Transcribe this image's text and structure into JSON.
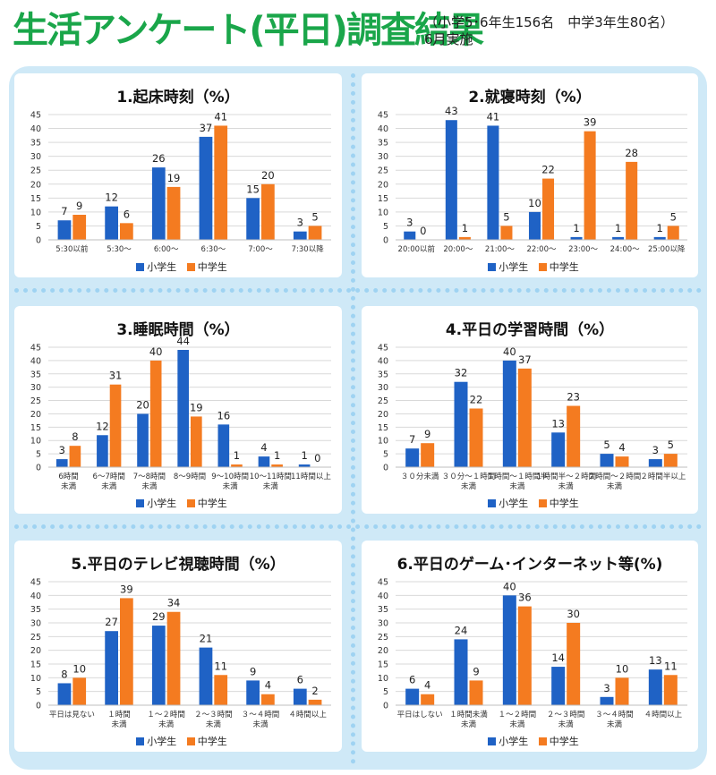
{
  "header": {
    "title": "生活アンケート(平日)調査結果",
    "subtitle_line1": "（小学5･6年生156名　中学3年生80名）",
    "subtitle_line2": "6月実施"
  },
  "legend": [
    "小学生",
    "中学生"
  ],
  "colors": {
    "elementary": "#1f62c5",
    "junior_high": "#f47b20",
    "grid": "#d9d9d9",
    "frame": "#cfe9f7",
    "title": "#1aa64a"
  },
  "chart_data": [
    {
      "type": "bar",
      "title": "1.起床時刻（%）",
      "categories": [
        [
          "5:30以前"
        ],
        [
          "5:30〜"
        ],
        [
          "6:00〜"
        ],
        [
          "6:30〜"
        ],
        [
          "7:00〜"
        ],
        [
          "7:30以降"
        ]
      ],
      "series": [
        {
          "name": "小学生",
          "values": [
            7,
            12,
            26,
            37,
            15,
            3
          ]
        },
        {
          "name": "中学生",
          "values": [
            9,
            6,
            19,
            41,
            20,
            5
          ]
        }
      ],
      "ylim": [
        0,
        45
      ],
      "ytick_step": 5,
      "grid": true,
      "legend": "bottom"
    },
    {
      "type": "bar",
      "title": "2.就寝時刻（%）",
      "categories": [
        [
          "20:00以前"
        ],
        [
          "20:00〜"
        ],
        [
          "21:00〜"
        ],
        [
          "22:00〜"
        ],
        [
          "23:00〜"
        ],
        [
          "24:00〜"
        ],
        [
          "25:00以降"
        ]
      ],
      "series": [
        {
          "name": "小学生",
          "values": [
            3,
            43,
            41,
            10,
            1,
            1,
            1
          ]
        },
        {
          "name": "中学生",
          "values": [
            0,
            1,
            5,
            22,
            39,
            28,
            5
          ]
        }
      ],
      "ylim": [
        0,
        45
      ],
      "ytick_step": 5,
      "grid": true,
      "legend": "bottom"
    },
    {
      "type": "bar",
      "title": "3.睡眠時間（%）",
      "categories": [
        [
          "6時間",
          "未満"
        ],
        [
          "6〜7時間",
          "未満"
        ],
        [
          "7〜8時間",
          "未満"
        ],
        [
          "8〜9時間"
        ],
        [
          "9〜10時間",
          "未満"
        ],
        [
          "10〜11時間",
          "未満"
        ],
        [
          "11時間以上"
        ]
      ],
      "series": [
        {
          "name": "小学生",
          "values": [
            3,
            12,
            20,
            44,
            16,
            4,
            1
          ]
        },
        {
          "name": "中学生",
          "values": [
            8,
            31,
            40,
            19,
            1,
            1,
            0
          ]
        }
      ],
      "ylim": [
        0,
        45
      ],
      "ytick_step": 5,
      "grid": true,
      "legend": "bottom"
    },
    {
      "type": "bar",
      "title": "4.平日の学習時間（%）",
      "categories": [
        [
          "３０分未満"
        ],
        [
          "３０分〜１時間",
          "未満"
        ],
        [
          "１時間〜１時間半",
          "未満"
        ],
        [
          "１時間半〜２時間",
          "未満"
        ],
        [
          "２時間〜２時間",
          "未満"
        ],
        [
          "２時間半以上"
        ]
      ],
      "series": [
        {
          "name": "小学生",
          "values": [
            7,
            32,
            40,
            13,
            5,
            3
          ]
        },
        {
          "name": "中学生",
          "values": [
            9,
            22,
            37,
            23,
            4,
            5
          ]
        }
      ],
      "ylim": [
        0,
        45
      ],
      "ytick_step": 5,
      "grid": true,
      "legend": "bottom"
    },
    {
      "type": "bar",
      "title": "5.平日のテレビ視聴時間（%）",
      "categories": [
        [
          "平日は見ない"
        ],
        [
          "１時間",
          "未満"
        ],
        [
          "１〜２時間",
          "未満"
        ],
        [
          "２〜３時間",
          "未満"
        ],
        [
          "３〜４時間",
          "未満"
        ],
        [
          "４時間以上"
        ]
      ],
      "series": [
        {
          "name": "小学生",
          "values": [
            8,
            27,
            29,
            21,
            9,
            6
          ]
        },
        {
          "name": "中学生",
          "values": [
            10,
            39,
            34,
            11,
            4,
            2
          ]
        }
      ],
      "ylim": [
        0,
        45
      ],
      "ytick_step": 5,
      "grid": true,
      "legend": "bottom"
    },
    {
      "type": "bar",
      "title": "6.平日のゲーム･インターネット等(%)",
      "categories": [
        [
          "平日はしない"
        ],
        [
          "１時間未満",
          "未満"
        ],
        [
          "１〜２時間",
          "未満"
        ],
        [
          "２〜３時間",
          "未満"
        ],
        [
          "３〜４時間",
          "未満"
        ],
        [
          "４時間以上"
        ]
      ],
      "series": [
        {
          "name": "小学生",
          "values": [
            6,
            24,
            40,
            14,
            3,
            13
          ]
        },
        {
          "name": "中学生",
          "values": [
            4,
            9,
            36,
            30,
            10,
            11
          ]
        }
      ],
      "ylim": [
        0,
        45
      ],
      "ytick_step": 5,
      "grid": true,
      "legend": "bottom"
    }
  ]
}
